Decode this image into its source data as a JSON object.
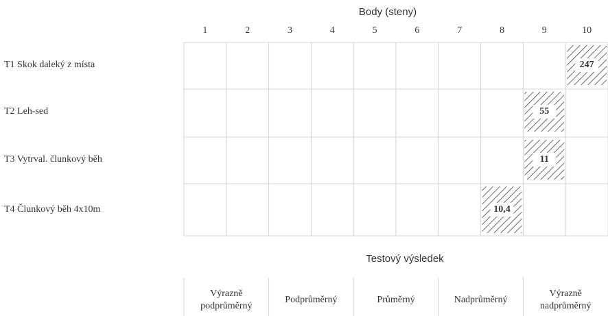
{
  "header": {
    "title": "Body (steny)",
    "columns": [
      "1",
      "2",
      "3",
      "4",
      "5",
      "6",
      "7",
      "8",
      "9",
      "10"
    ]
  },
  "rows": [
    {
      "label": "T1 Skok daleký z místa",
      "cells": [
        null,
        null,
        null,
        null,
        null,
        null,
        null,
        null,
        null,
        "247"
      ]
    },
    {
      "label": "T2 Leh-sed",
      "cells": [
        null,
        null,
        null,
        null,
        null,
        null,
        null,
        null,
        "55",
        null
      ]
    },
    {
      "label": "T3 Vytrval. člunkový běh",
      "cells": [
        null,
        null,
        null,
        null,
        null,
        null,
        null,
        null,
        "11",
        null
      ]
    },
    {
      "label": "T4 Člunkový běh 4x10m",
      "cells": [
        null,
        null,
        null,
        null,
        null,
        null,
        null,
        "10,4",
        null,
        null
      ]
    }
  ],
  "footer": {
    "title": "Testový výsledek",
    "categories": [
      [
        "Výrazně",
        "podprůměrný"
      ],
      [
        "Podprůměrný"
      ],
      [
        "Průměrný"
      ],
      [
        "Nadprůměrný"
      ],
      [
        "Výrazně",
        "nadprůměrný"
      ]
    ]
  }
}
